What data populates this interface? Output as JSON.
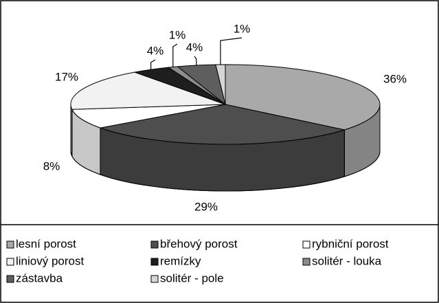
{
  "chart_data": {
    "type": "pie3d",
    "categories": [
      "lesní porost",
      "břehový porost",
      "rybniční porost",
      "liniový porost",
      "remízky",
      "solitér - louka",
      "zástavba",
      "solitér - pole"
    ],
    "values": [
      36,
      29,
      8,
      17,
      4,
      1,
      4,
      1
    ],
    "value_labels": [
      "36%",
      "29%",
      "8%",
      "17%",
      "4%",
      "1%",
      "4%",
      "1%"
    ],
    "colors": [
      "#a9a9a9",
      "#4e4e4e",
      "#ffffff",
      "#f2f2f2",
      "#1e1e1e",
      "#8c8c8c",
      "#5e5e5e",
      "#d6d6d6"
    ],
    "legend": "bottom"
  }
}
